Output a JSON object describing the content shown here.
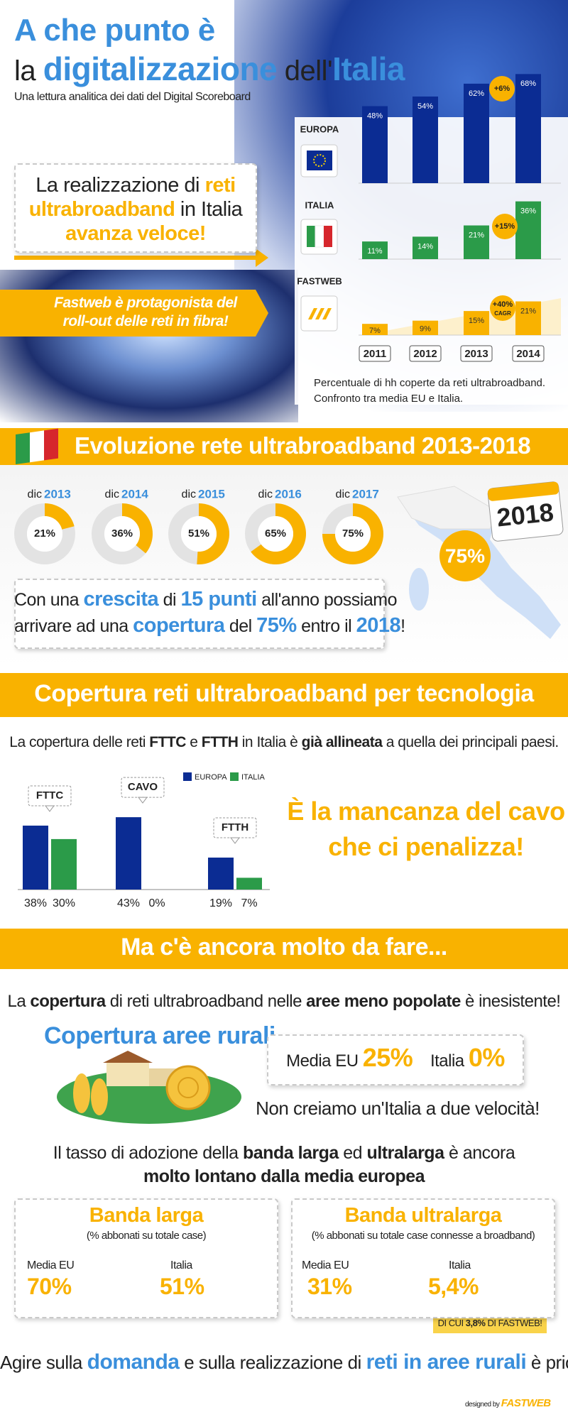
{
  "header": {
    "title_line1": "A che punto è",
    "title_line2": [
      "la",
      "digitalizzazione",
      "dell'",
      "Italia"
    ],
    "subtitle": "Una lettura analitica dei dati del Digital Scoreboard"
  },
  "intro": {
    "callout_1": [
      "La realizzazione di",
      "reti",
      "ultrabroadband",
      "in Italia",
      "avanza veloce!"
    ],
    "callout_2": "Fastweb è protagonista del roll-out delle reti in fibra!"
  },
  "chart_data": [
    {
      "type": "bar",
      "categories": [
        "2011",
        "2012",
        "2013",
        "2014"
      ],
      "series": [
        {
          "name": "EUROPA",
          "color": "#0b2c93",
          "values": [
            48,
            54,
            62,
            68
          ],
          "value_labels": [
            "48%",
            "54%",
            "62%",
            "68%"
          ]
        },
        {
          "name": "ITALIA",
          "color": "#2b9b49",
          "values": [
            11,
            14,
            21,
            36
          ],
          "value_labels": [
            "11%",
            "14%",
            "21%",
            "36%"
          ]
        },
        {
          "name": "FASTWEB",
          "color": "#f9b200",
          "values": [
            7,
            9,
            15,
            21
          ],
          "value_labels": [
            "7%",
            "9%",
            "15%",
            "21%"
          ]
        }
      ],
      "annotations": [
        "+6%",
        "+15%",
        "+40%"
      ],
      "annotation_note": "CAGR",
      "caption": [
        "Percentuale di hh coperte da reti ultrabroadband.",
        "Confronto tra media EU e Italia."
      ]
    },
    {
      "type": "donut",
      "title": "Evoluzione rete ultrabroadband 2013-2018",
      "category_prefix": "dic",
      "categories": [
        "2013",
        "2014",
        "2015",
        "2016",
        "2017"
      ],
      "values": [
        21,
        36,
        51,
        65,
        75
      ],
      "value_labels": [
        "21%",
        "36%",
        "51%",
        "65%",
        "75%"
      ],
      "color": "#f9b200",
      "target_year": "2018",
      "target_value": 75,
      "target_label": "75%"
    },
    {
      "type": "grouped-bar",
      "title": "Copertura reti ultrabroadband per tecnologia",
      "categories": [
        "FTTC",
        "CAVO",
        "FTTH"
      ],
      "series": [
        {
          "name": "EUROPA",
          "color": "#0b2c93",
          "values": [
            38,
            43,
            19
          ],
          "value_labels": [
            "38%",
            "43%",
            "19%"
          ]
        },
        {
          "name": "ITALIA",
          "color": "#2b9b49",
          "values": [
            30,
            0,
            7
          ],
          "value_labels": [
            "30%",
            "0%",
            "7%"
          ]
        }
      ]
    }
  ],
  "growth": {
    "parts": [
      "Con una",
      "crescita",
      "di",
      "15 punti",
      "all'anno possiamo",
      "arrivare ad una",
      "copertura",
      "del",
      "75%",
      "entro il",
      "2018",
      "!"
    ]
  },
  "technology": {
    "intro": [
      "La copertura delle reti",
      "FTTC",
      "e",
      "FTTH",
      "in Italia è",
      "già allineata",
      "a quella dei principali paesi."
    ],
    "highlight": [
      "È la mancanza del cavo",
      "che ci penalizza!"
    ]
  },
  "todo": {
    "title": "Ma c'è ancora molto da fare...",
    "intro": [
      "La",
      "copertura",
      "di reti ultrabroadband nelle",
      "aree meno popolate",
      "è inesistente!"
    ],
    "rural_title": "Copertura aree rurali",
    "rural_eu_label": "Media EU",
    "rural_eu_value": "25%",
    "rural_it_label": "Italia",
    "rural_it_value": "0%",
    "rural_note": "Non creiamo un'Italia a due velocità!",
    "adoption_intro": [
      "Il tasso di adozione della",
      "banda larga",
      "ed",
      "ultralarga",
      "è ancora",
      "molto lontano dalla media europea"
    ],
    "boxes": [
      {
        "title": "Banda larga",
        "subtitle": "(% abbonati su totale case)",
        "eu_label": "Media EU",
        "eu_value": "70%",
        "it_label": "Italia",
        "it_value": "51%"
      },
      {
        "title": "Banda ultralarga",
        "subtitle": "(% abbonati su totale case connesse a broadband)",
        "eu_label": "Media EU",
        "eu_value": "31%",
        "it_label": "Italia",
        "it_value": "5,4%",
        "note": [
          "DI CUI",
          "3,8%",
          "DI FASTWEB!"
        ]
      }
    ]
  },
  "footer": {
    "closing": [
      "Agire sulla",
      "domanda",
      "e sulla realizzazione di",
      "reti in aree rurali",
      "è prioritario"
    ],
    "credit_prefix": "designed by",
    "credit_brand": "FASTWEB"
  }
}
